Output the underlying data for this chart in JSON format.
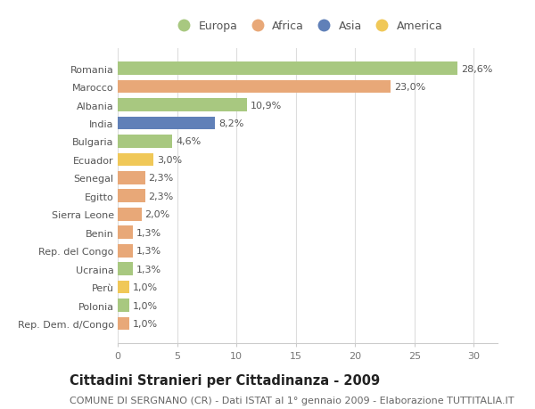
{
  "categories": [
    "Romania",
    "Marocco",
    "Albania",
    "India",
    "Bulgaria",
    "Ecuador",
    "Senegal",
    "Egitto",
    "Sierra Leone",
    "Benin",
    "Rep. del Congo",
    "Ucraina",
    "Perù",
    "Polonia",
    "Rep. Dem. d/Congo"
  ],
  "values": [
    28.6,
    23.0,
    10.9,
    8.2,
    4.6,
    3.0,
    2.3,
    2.3,
    2.0,
    1.3,
    1.3,
    1.3,
    1.0,
    1.0,
    1.0
  ],
  "labels": [
    "28,6%",
    "23,0%",
    "10,9%",
    "8,2%",
    "4,6%",
    "3,0%",
    "2,3%",
    "2,3%",
    "2,0%",
    "1,3%",
    "1,3%",
    "1,3%",
    "1,0%",
    "1,0%",
    "1,0%"
  ],
  "continents": [
    "Europa",
    "Africa",
    "Europa",
    "Asia",
    "Europa",
    "America",
    "Africa",
    "Africa",
    "Africa",
    "Africa",
    "Africa",
    "Europa",
    "America",
    "Europa",
    "Africa"
  ],
  "colors": {
    "Europa": "#a8c880",
    "Africa": "#e8a878",
    "Asia": "#6080b8",
    "America": "#f0c858"
  },
  "title": "Cittadini Stranieri per Cittadinanza - 2009",
  "subtitle": "COMUNE DI SERGNANO (CR) - Dati ISTAT al 1° gennaio 2009 - Elaborazione TUTTITALIA.IT",
  "xlim": [
    0,
    32
  ],
  "xticks": [
    0,
    5,
    10,
    15,
    20,
    25,
    30
  ],
  "background_color": "#ffffff",
  "grid_color": "#dddddd",
  "bar_height": 0.72,
  "label_fontsize": 8.0,
  "title_fontsize": 10.5,
  "subtitle_fontsize": 8.0
}
